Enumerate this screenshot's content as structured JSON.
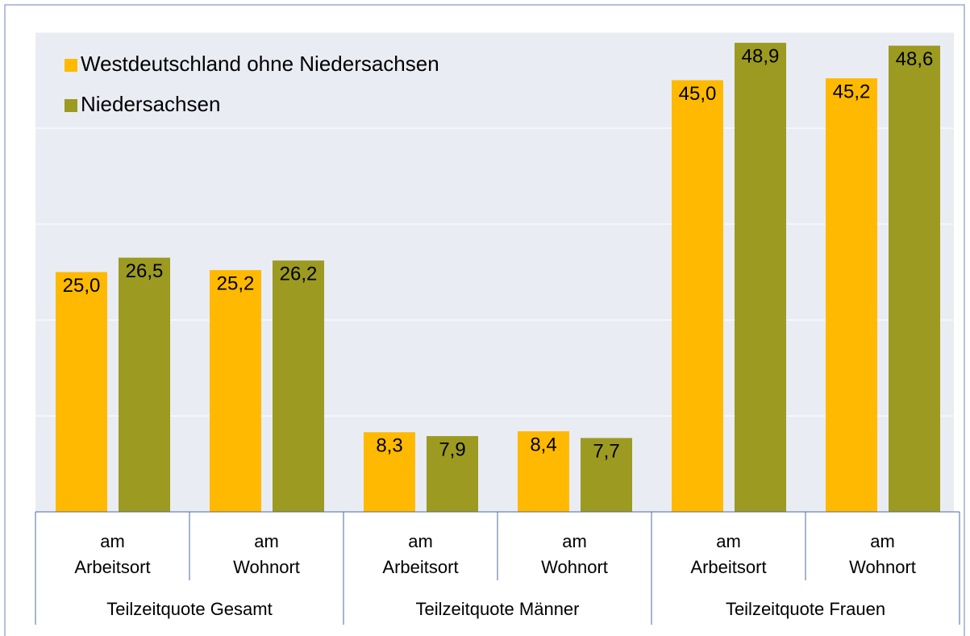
{
  "chart_data": {
    "type": "bar",
    "categories": [
      "am Arbeitsort",
      "am Wohnort",
      "am Arbeitsort",
      "am Wohnort",
      "am Arbeitsort",
      "am Wohnort"
    ],
    "category_groups": [
      "Teilzeitquote Gesamt",
      "Teilzeitquote Männer",
      "Teilzeitquote Frauen"
    ],
    "series": [
      {
        "name": "Westdeutschland ohne Niedersachsen",
        "color": "#ffb900",
        "values": [
          25.0,
          25.2,
          8.3,
          8.4,
          45.0,
          45.2
        ],
        "value_labels": [
          "25,0",
          "25,2",
          "8,3",
          "8,4",
          "45,0",
          "45,2"
        ]
      },
      {
        "name": "Niedersachsen",
        "color": "#9c9a21",
        "values": [
          26.5,
          26.2,
          7.9,
          7.7,
          48.9,
          48.6
        ],
        "value_labels": [
          "26,5",
          "26,2",
          "7,9",
          "7,7",
          "48,9",
          "48,6"
        ]
      }
    ],
    "ylim": [
      0,
      50
    ],
    "yticks": [
      0,
      10,
      20,
      30,
      40,
      50
    ],
    "grid": true,
    "legend": "top-left"
  }
}
